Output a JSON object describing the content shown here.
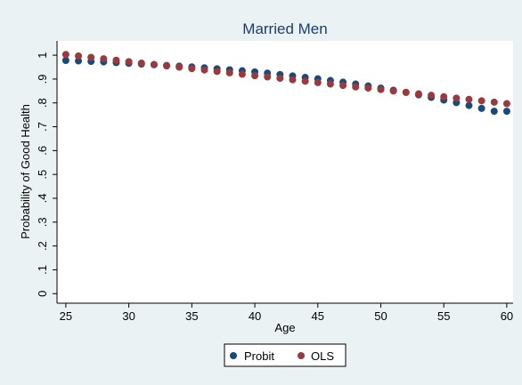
{
  "chart_data": {
    "type": "scatter",
    "title": "Married Men",
    "xlabel": "Age",
    "ylabel": "Probability of Good Health",
    "xlim": [
      24.3,
      60.5
    ],
    "ylim": [
      -0.04,
      1.06
    ],
    "xticks": [
      25,
      30,
      35,
      40,
      45,
      50,
      55,
      60
    ],
    "yticks": [
      0,
      0.1,
      0.2,
      0.3,
      0.4,
      0.5,
      0.6,
      0.7,
      0.8,
      0.9,
      1
    ],
    "ytick_labels": [
      "0",
      ".1",
      ".2",
      ".3",
      ".4",
      ".5",
      ".6",
      ".7",
      ".8",
      ".9",
      "1"
    ],
    "grid": false,
    "legend": "bottom",
    "x": [
      25,
      26,
      27,
      28,
      29,
      30,
      31,
      32,
      33,
      34,
      35,
      36,
      37,
      38,
      39,
      40,
      41,
      42,
      43,
      44,
      45,
      46,
      47,
      48,
      49,
      50,
      51,
      52,
      53,
      54,
      55,
      56,
      57,
      58,
      59,
      60
    ],
    "series": [
      {
        "name": "Probit",
        "color": "#1a4a7a",
        "values": [
          0.978,
          0.976,
          0.974,
          0.972,
          0.969,
          0.966,
          0.963,
          0.96,
          0.957,
          0.954,
          0.951,
          0.947,
          0.943,
          0.939,
          0.935,
          0.93,
          0.925,
          0.919,
          0.913,
          0.907,
          0.901,
          0.894,
          0.887,
          0.879,
          0.871,
          0.862,
          0.853,
          0.844,
          0.834,
          0.823,
          0.812,
          0.801,
          0.789,
          0.777,
          0.765,
          0.765
        ]
      },
      {
        "name": "OLS",
        "color": "#9b3a3e",
        "values": [
          1.003,
          0.997,
          0.991,
          0.985,
          0.979,
          0.973,
          0.967,
          0.961,
          0.955,
          0.95,
          0.944,
          0.938,
          0.932,
          0.926,
          0.92,
          0.914,
          0.909,
          0.903,
          0.897,
          0.891,
          0.885,
          0.879,
          0.873,
          0.867,
          0.862,
          0.856,
          0.85,
          0.844,
          0.838,
          0.832,
          0.826,
          0.82,
          0.815,
          0.809,
          0.803,
          0.797
        ]
      }
    ]
  }
}
